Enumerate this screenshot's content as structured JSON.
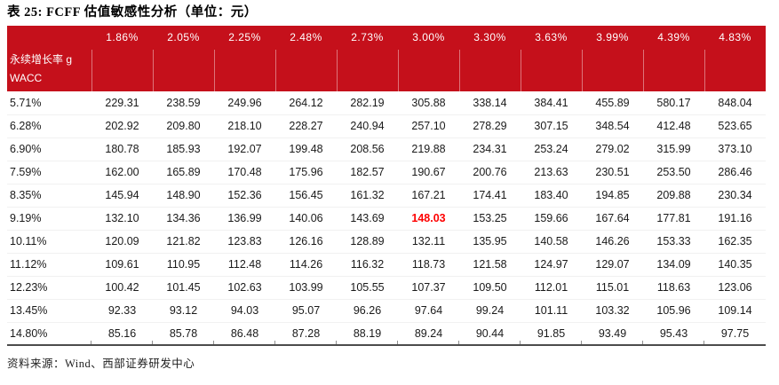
{
  "page": {
    "title": "表 25: FCFF 估值敏感性分析（单位：元）",
    "source_note": "资料来源：Wind、西部证券研发中心"
  },
  "colors": {
    "header_background": "#C5101B",
    "header_text": "#FFFFFF",
    "header_separator": "rgba(255,255,255,0.42)",
    "highlight_text": "#FE0000",
    "body_text": "#1A1A1A",
    "table_bottom_border": "#4C4C4C"
  },
  "table": {
    "column_axis_label": "永续增长率 g",
    "row_axis_label": "WACC",
    "columns": [
      "1.86%",
      "2.05%",
      "2.25%",
      "2.48%",
      "2.73%",
      "3.00%",
      "3.30%",
      "3.63%",
      "3.99%",
      "4.39%",
      "4.83%"
    ],
    "rows": [
      {
        "wacc": "5.71%",
        "values": [
          "229.31",
          "238.59",
          "249.96",
          "264.12",
          "282.19",
          "305.88",
          "338.14",
          "384.41",
          "455.89",
          "580.17",
          "848.04"
        ]
      },
      {
        "wacc": "6.28%",
        "values": [
          "202.92",
          "209.80",
          "218.10",
          "228.27",
          "240.94",
          "257.10",
          "278.29",
          "307.15",
          "348.54",
          "412.48",
          "523.65"
        ]
      },
      {
        "wacc": "6.90%",
        "values": [
          "180.78",
          "185.93",
          "192.07",
          "199.48",
          "208.56",
          "219.88",
          "234.31",
          "253.24",
          "279.02",
          "315.99",
          "373.10"
        ]
      },
      {
        "wacc": "7.59%",
        "values": [
          "162.00",
          "165.89",
          "170.48",
          "175.96",
          "182.57",
          "190.67",
          "200.76",
          "213.63",
          "230.51",
          "253.50",
          "286.46"
        ]
      },
      {
        "wacc": "8.35%",
        "values": [
          "145.94",
          "148.90",
          "152.36",
          "156.45",
          "161.32",
          "167.21",
          "174.41",
          "183.40",
          "194.85",
          "209.88",
          "230.34"
        ]
      },
      {
        "wacc": "9.19%",
        "values": [
          "132.10",
          "134.36",
          "136.99",
          "140.06",
          "143.69",
          "148.03",
          "153.25",
          "159.66",
          "167.64",
          "177.81",
          "191.16"
        ]
      },
      {
        "wacc": "10.11%",
        "values": [
          "120.09",
          "121.82",
          "123.83",
          "126.16",
          "128.89",
          "132.11",
          "135.95",
          "140.58",
          "146.26",
          "153.33",
          "162.35"
        ]
      },
      {
        "wacc": "11.12%",
        "values": [
          "109.61",
          "110.95",
          "112.48",
          "114.26",
          "116.32",
          "118.73",
          "121.58",
          "124.97",
          "129.07",
          "134.09",
          "140.35"
        ]
      },
      {
        "wacc": "12.23%",
        "values": [
          "100.42",
          "101.45",
          "102.63",
          "103.99",
          "105.55",
          "107.37",
          "109.50",
          "112.01",
          "115.01",
          "118.63",
          "123.06"
        ]
      },
      {
        "wacc": "13.45%",
        "values": [
          "92.33",
          "93.12",
          "94.03",
          "95.07",
          "96.26",
          "97.64",
          "99.24",
          "101.11",
          "103.32",
          "105.96",
          "109.14"
        ]
      },
      {
        "wacc": "14.80%",
        "values": [
          "85.16",
          "85.78",
          "86.48",
          "87.28",
          "88.19",
          "89.24",
          "90.44",
          "91.85",
          "93.49",
          "95.43",
          "97.75"
        ]
      }
    ],
    "highlight": {
      "row_index": 5,
      "col_index": 5,
      "value": "148.03"
    }
  }
}
